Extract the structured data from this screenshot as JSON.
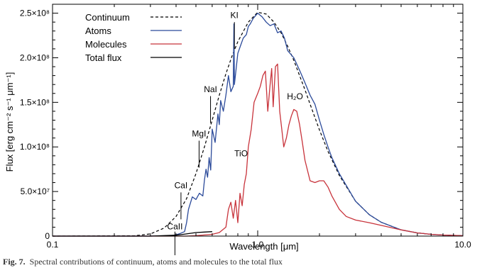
{
  "chart_data": {
    "type": "line",
    "xlabel": "Wavelength [μm]",
    "ylabel": "Flux [erg cm⁻² s⁻¹ μm⁻¹]",
    "xscale": "log",
    "xlim": [
      0.1,
      10.0
    ],
    "ylim": [
      0,
      260000000
    ],
    "grid": false,
    "legend_placement": "top-left",
    "x_ticks": [
      {
        "value": 0.1,
        "label": "0.1"
      },
      {
        "value": 1.0,
        "label": "1.0"
      },
      {
        "value": 10.0,
        "label": "10.0"
      }
    ],
    "y_ticks": [
      {
        "value": 0,
        "label": "0"
      },
      {
        "value": 50000000,
        "label": "5.0×10⁷"
      },
      {
        "value": 100000000,
        "label": "1.0×10⁸"
      },
      {
        "value": 150000000,
        "label": "1.5×10⁸"
      },
      {
        "value": 200000000,
        "label": "2.0×10⁸"
      },
      {
        "value": 250000000,
        "label": "2.5×10⁸"
      }
    ],
    "series": [
      {
        "name": "Continuum",
        "color": "#000000",
        "dash": "dashed",
        "x": [
          0.1,
          0.25,
          0.3,
          0.35,
          0.4,
          0.45,
          0.5,
          0.55,
          0.6,
          0.65,
          0.7,
          0.75,
          0.8,
          0.9,
          1.0,
          1.1,
          1.2,
          1.3,
          1.4,
          1.5,
          1.6,
          1.7,
          1.8,
          1.9,
          2.0,
          2.2,
          2.5,
          3.0,
          3.5,
          4.0,
          5.0,
          6.0,
          7.0,
          8.0,
          10.0
        ],
        "y": [
          0,
          300000,
          2500000,
          9000000,
          22000000,
          42000000,
          70000000,
          100000000,
          130000000,
          158000000,
          182000000,
          202000000,
          218000000,
          240000000,
          251000000,
          249000000,
          240000000,
          228000000,
          213000000,
          197000000,
          180000000,
          164000000,
          148000000,
          133000000,
          119000000,
          95000000,
          68000000,
          39000000,
          24000000,
          15500000,
          7000000,
          3600000,
          2000000,
          1200000,
          500000
        ]
      },
      {
        "name": "Atoms",
        "color": "#2b4a9a",
        "dash": "solid",
        "x": [
          0.1,
          0.3,
          0.38,
          0.4,
          0.42,
          0.44,
          0.45,
          0.46,
          0.48,
          0.5,
          0.52,
          0.54,
          0.55,
          0.56,
          0.57,
          0.58,
          0.59,
          0.6,
          0.62,
          0.64,
          0.65,
          0.66,
          0.68,
          0.7,
          0.72,
          0.74,
          0.76,
          0.766,
          0.77,
          0.8,
          0.82,
          0.85,
          0.88,
          0.9,
          0.92,
          0.95,
          1.0,
          1.05,
          1.1,
          1.15,
          1.2,
          1.25,
          1.3,
          1.35,
          1.4,
          1.5,
          1.6,
          1.7,
          1.8,
          1.9,
          2.0,
          2.1,
          2.2,
          2.3,
          2.5,
          3.0,
          3.5,
          4.0,
          5.0,
          6.0,
          7.0,
          8.0,
          10.0
        ],
        "y": [
          0,
          0,
          500000,
          1500000,
          3000000,
          5000000,
          15000000,
          30000000,
          44000000,
          41000000,
          48000000,
          45000000,
          63000000,
          75000000,
          66000000,
          88000000,
          74000000,
          120000000,
          105000000,
          137000000,
          125000000,
          152000000,
          140000000,
          158000000,
          180000000,
          162000000,
          168000000,
          238000000,
          170000000,
          205000000,
          212000000,
          222000000,
          226000000,
          235000000,
          238000000,
          244000000,
          250000000,
          246000000,
          240000000,
          236000000,
          238000000,
          228000000,
          230000000,
          222000000,
          208000000,
          200000000,
          186000000,
          172000000,
          158000000,
          148000000,
          130000000,
          114000000,
          100000000,
          88000000,
          70000000,
          39000000,
          24000000,
          15500000,
          7000000,
          3600000,
          2000000,
          1200000,
          500000
        ]
      },
      {
        "name": "Molecules",
        "color": "#c8333b",
        "dash": "solid",
        "x": [
          0.1,
          0.45,
          0.5,
          0.6,
          0.65,
          0.7,
          0.72,
          0.74,
          0.76,
          0.78,
          0.8,
          0.82,
          0.84,
          0.86,
          0.88,
          0.9,
          0.93,
          0.96,
          1.0,
          1.03,
          1.06,
          1.09,
          1.12,
          1.15,
          1.17,
          1.19,
          1.22,
          1.25,
          1.28,
          1.31,
          1.34,
          1.38,
          1.42,
          1.46,
          1.5,
          1.55,
          1.6,
          1.65,
          1.7,
          1.8,
          1.9,
          2.0,
          2.1,
          2.2,
          2.3,
          2.5,
          2.7,
          3.0,
          3.5,
          4.0,
          5.0,
          6.0,
          7.0,
          8.0,
          10.0
        ],
        "y": [
          0,
          0,
          500000,
          2000000,
          4000000,
          10000000,
          30000000,
          38000000,
          20000000,
          40000000,
          15000000,
          48000000,
          34000000,
          58000000,
          70000000,
          100000000,
          120000000,
          150000000,
          160000000,
          168000000,
          180000000,
          185000000,
          140000000,
          170000000,
          188000000,
          145000000,
          190000000,
          193000000,
          140000000,
          120000000,
          100000000,
          110000000,
          125000000,
          135000000,
          142000000,
          140000000,
          125000000,
          105000000,
          85000000,
          62000000,
          60000000,
          62000000,
          62000000,
          55000000,
          45000000,
          30000000,
          22000000,
          18000000,
          15000000,
          12000000,
          7000000,
          3600000,
          2000000,
          1200000,
          500000
        ]
      },
      {
        "name": "Total flux",
        "color": "#000000",
        "dash": "solid",
        "x": [
          0.1,
          0.3,
          0.4,
          0.45,
          0.5,
          0.55,
          0.6
        ],
        "y": [
          0,
          0,
          1000000,
          2500000,
          4000000,
          4500000,
          5000000
        ]
      }
    ],
    "annotations": [
      {
        "text": "CaII",
        "x": 0.395,
        "y": 6000000,
        "line_top": 5000000
      },
      {
        "text": "CaI",
        "x": 0.4227,
        "y": 52000000,
        "line_top": 49000000
      },
      {
        "text": "MgI",
        "x": 0.518,
        "y": 110000000,
        "line_top": 107000000
      },
      {
        "text": "NaI",
        "x": 0.589,
        "y": 160000000,
        "line_top": 157000000
      },
      {
        "text": "KI",
        "x": 0.77,
        "y": 243000000,
        "line_top": 240000000
      },
      {
        "text": "TiO",
        "x": 0.83,
        "y": 88000000
      },
      {
        "text": "H₂O",
        "x": 1.52,
        "y": 152000000
      }
    ]
  },
  "caption": {
    "label": "Fig. 7.",
    "text": "Spectral contributions of continuum, atoms and molecules to the total flux"
  }
}
